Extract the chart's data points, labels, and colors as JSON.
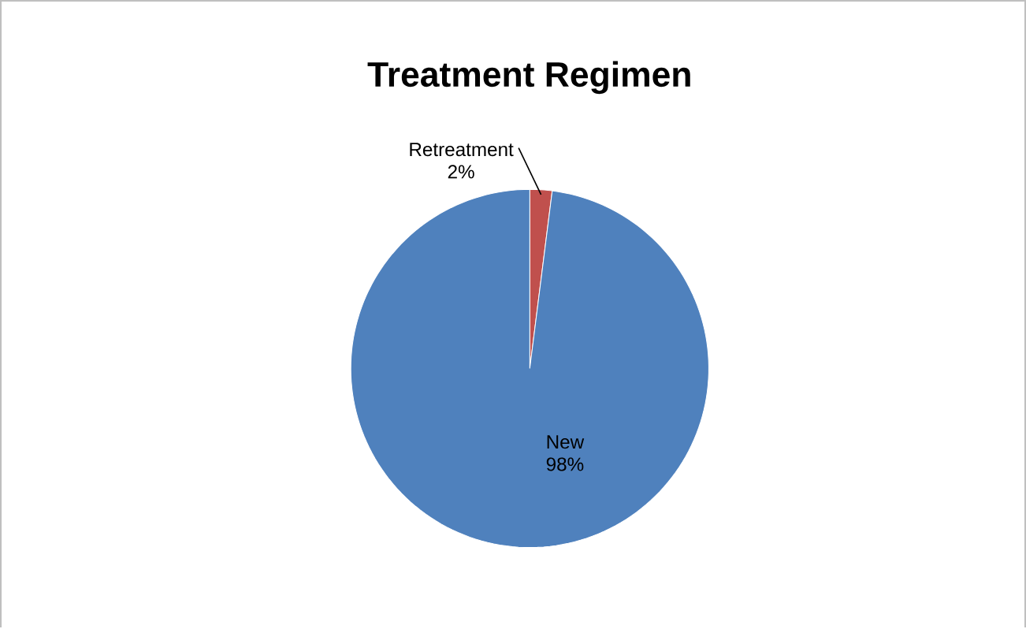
{
  "chart_data": {
    "type": "pie",
    "title": "Treatment Regimen",
    "categories": [
      "Retreatment",
      "New"
    ],
    "values": [
      2,
      98
    ],
    "colors": [
      "#c0504d",
      "#4f81bd"
    ],
    "value_labels": [
      "2%",
      "98%"
    ]
  }
}
